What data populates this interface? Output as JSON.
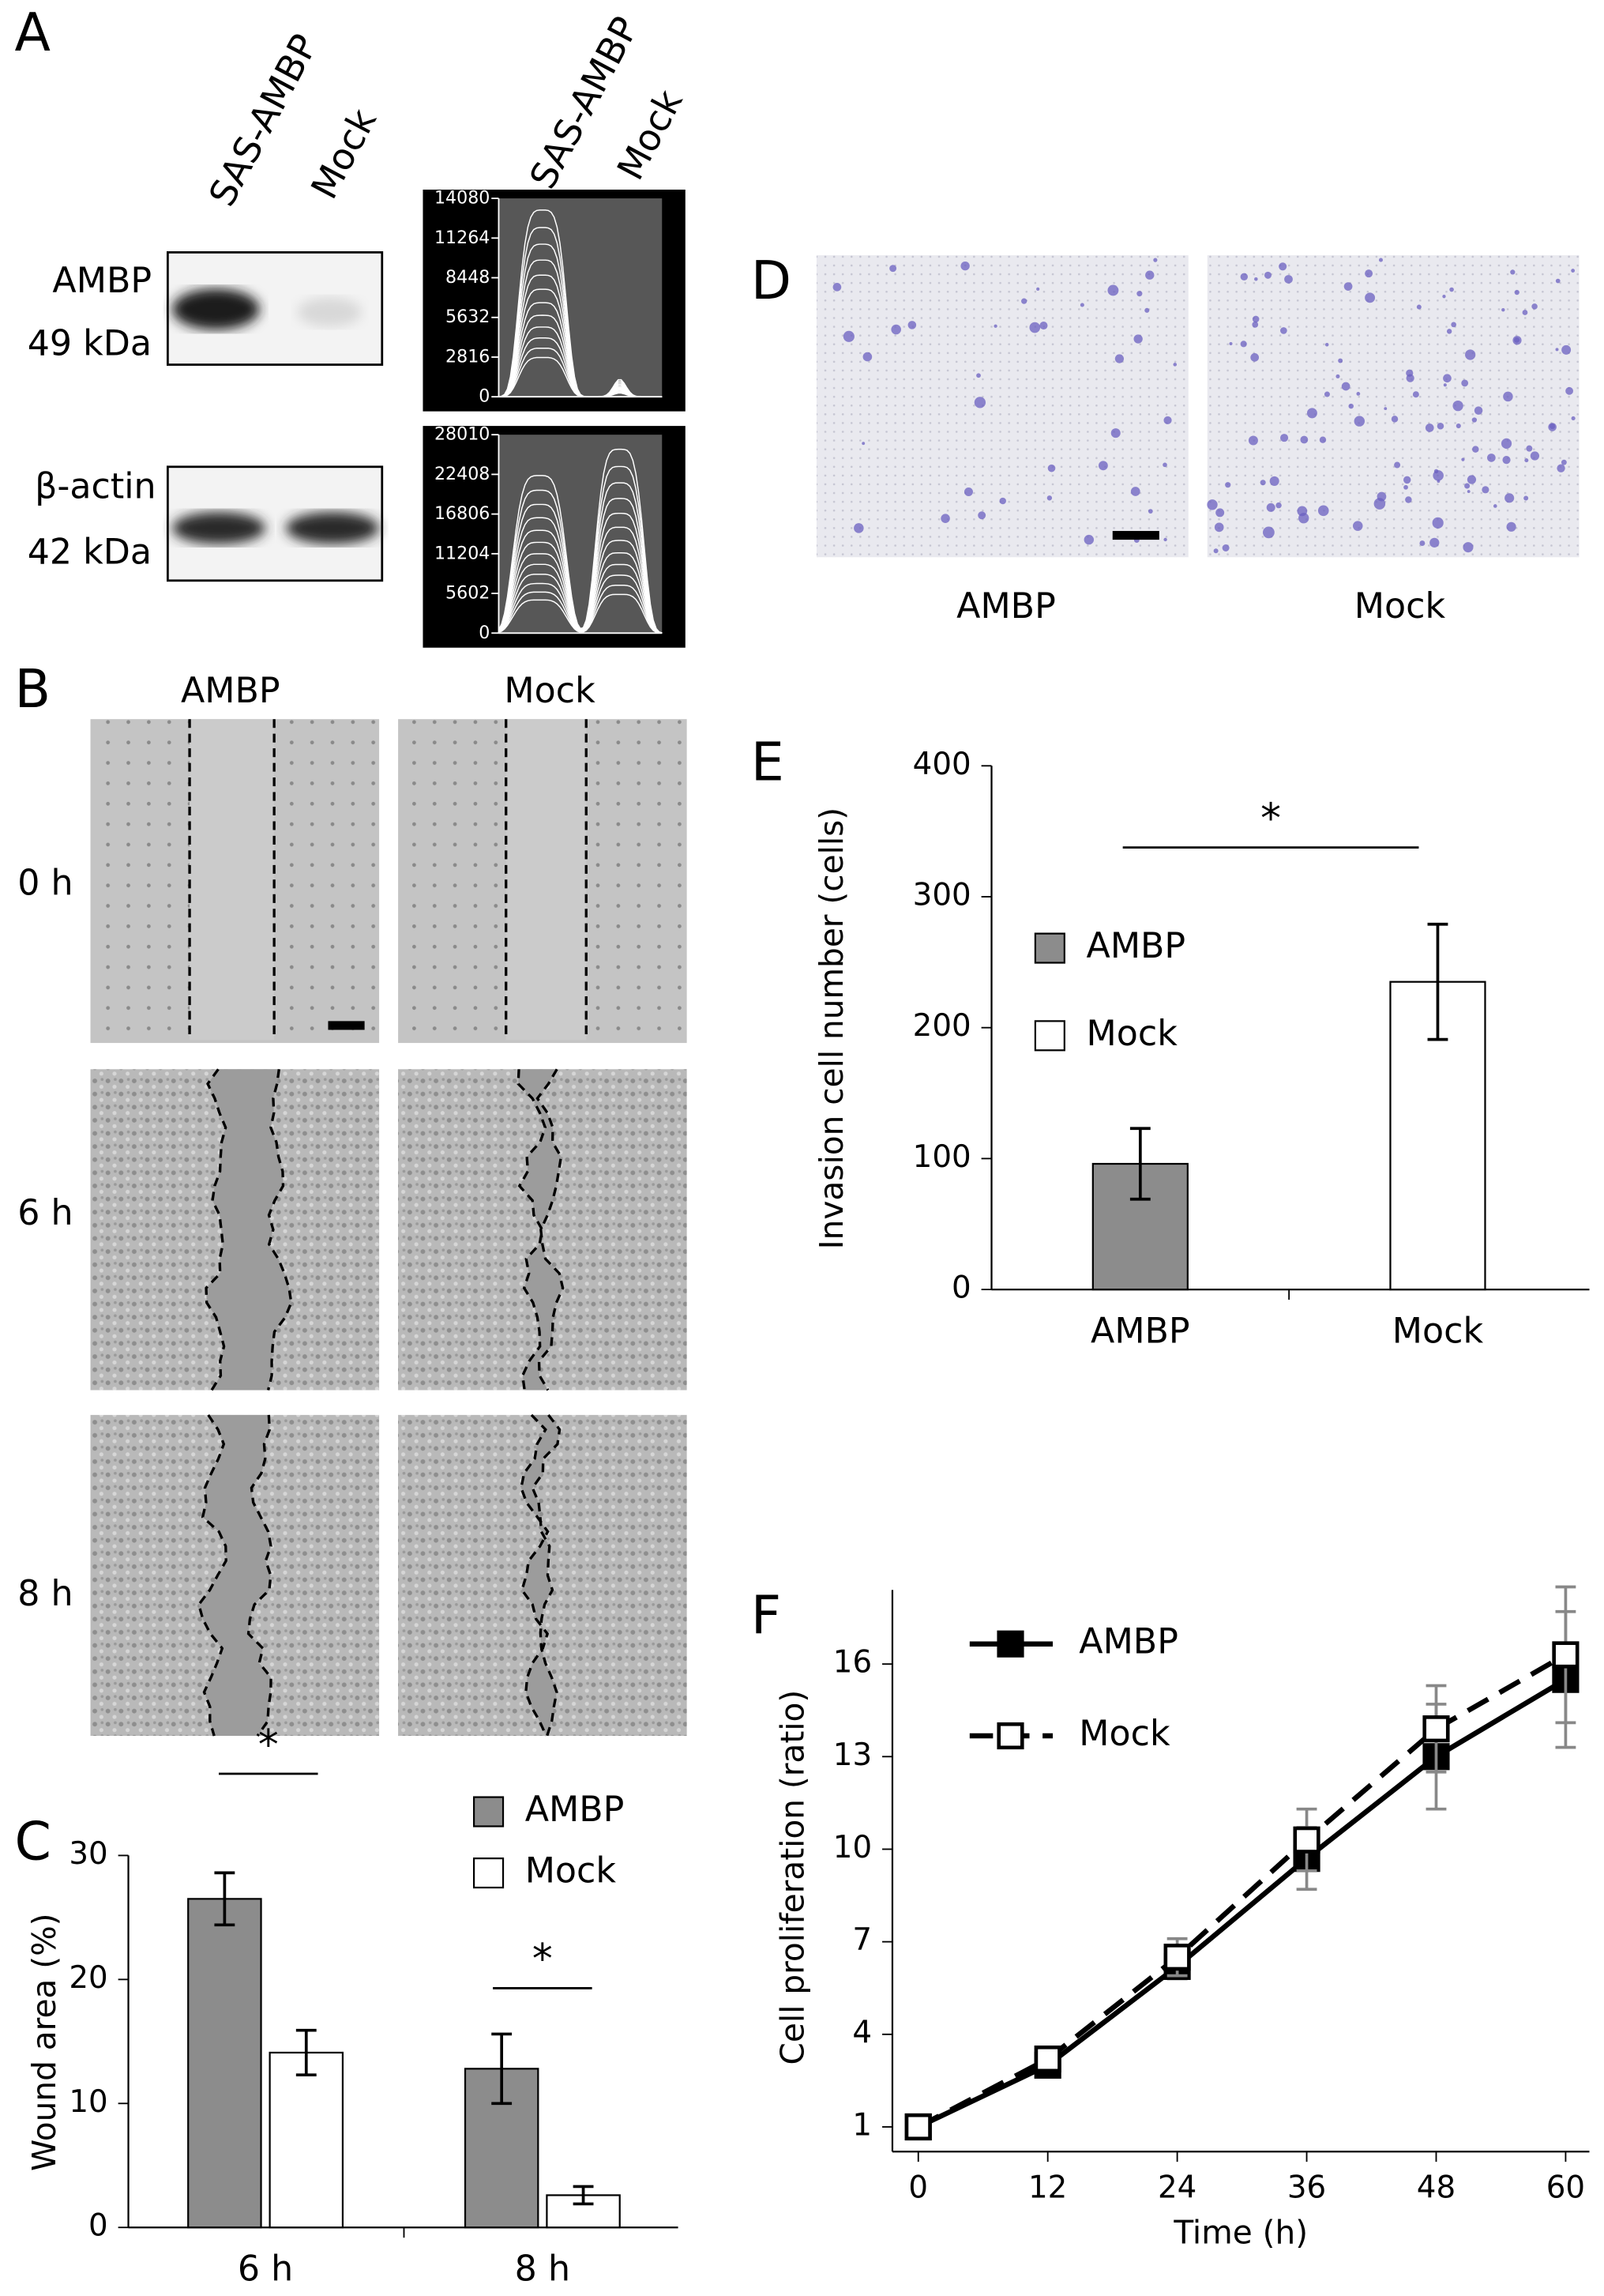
{
  "figure": {
    "A": {
      "label": "A",
      "lanes": [
        "SAS-AMBP",
        "Mock"
      ],
      "proteins": [
        {
          "name": "AMBP",
          "size": "49 kDa"
        },
        {
          "name": "β-actin",
          "size": "42 kDa"
        }
      ],
      "densitometry_lanes": [
        "SAS-AMBP",
        "Mock"
      ],
      "densitometry_ticks": [
        [
          14080,
          11264,
          8448,
          5632,
          2816,
          0
        ],
        [
          28010,
          22408,
          16806,
          11204,
          5602,
          0
        ]
      ]
    },
    "B": {
      "label": "B",
      "columns": [
        "AMBP",
        "Mock"
      ],
      "rows": [
        "0 h",
        "6 h",
        "8 h"
      ]
    },
    "D": {
      "label": "D",
      "columns": [
        "AMBP",
        "Mock"
      ]
    }
  },
  "chart_data": [
    {
      "type": "bar",
      "panel": "C",
      "y_label": "Wound area (%)",
      "categories": [
        "6 h",
        "8 h"
      ],
      "series": [
        {
          "name": "AMBP",
          "color": "#8c8c8c",
          "values": [
            26.5,
            12.8
          ],
          "errors": [
            2.1,
            2.8
          ]
        },
        {
          "name": "Mock",
          "color": "#ffffff",
          "values": [
            14.1,
            2.6
          ],
          "errors": [
            1.8,
            0.7
          ]
        }
      ],
      "ylim": [
        0,
        30
      ],
      "yticks": [
        0,
        10,
        20,
        30
      ],
      "annotations": [
        "*",
        "*"
      ]
    },
    {
      "type": "bar",
      "panel": "E",
      "y_label": "Invasion cell number (cells)",
      "categories": [
        "AMBP",
        "Mock"
      ],
      "values": [
        96,
        235
      ],
      "errors": [
        27,
        44
      ],
      "colors": [
        "#8c8c8c",
        "#ffffff"
      ],
      "ylim": [
        0,
        400
      ],
      "yticks": [
        0,
        100,
        200,
        300,
        400
      ],
      "annotations": [
        "*"
      ]
    },
    {
      "type": "line",
      "panel": "F",
      "x_label": "Time (h)",
      "y_label": "Cell proliferation (ratio)",
      "x": [
        0,
        12,
        24,
        36,
        48,
        60
      ],
      "series": [
        {
          "name": "AMBP",
          "color": "#000000",
          "marker": "filled",
          "linestyle": "solid",
          "values": [
            1,
            3,
            6.2,
            9.7,
            13,
            15.5
          ],
          "errors": [
            0,
            0.2,
            0.4,
            1,
            1.7,
            2.2
          ]
        },
        {
          "name": "Mock",
          "color": "#000000",
          "marker": "open",
          "linestyle": "dashed",
          "values": [
            1,
            3.2,
            6.5,
            10.3,
            13.9,
            16.3
          ],
          "errors": [
            0,
            0.2,
            0.6,
            1,
            1.4,
            2.2
          ]
        }
      ],
      "xlim": [
        -2.4,
        62.2
      ],
      "xticks": [
        0,
        12,
        24,
        36,
        48,
        60
      ],
      "ylim": [
        0.2,
        18.4
      ],
      "yticks": [
        1,
        4,
        7,
        10,
        13,
        16
      ]
    }
  ]
}
